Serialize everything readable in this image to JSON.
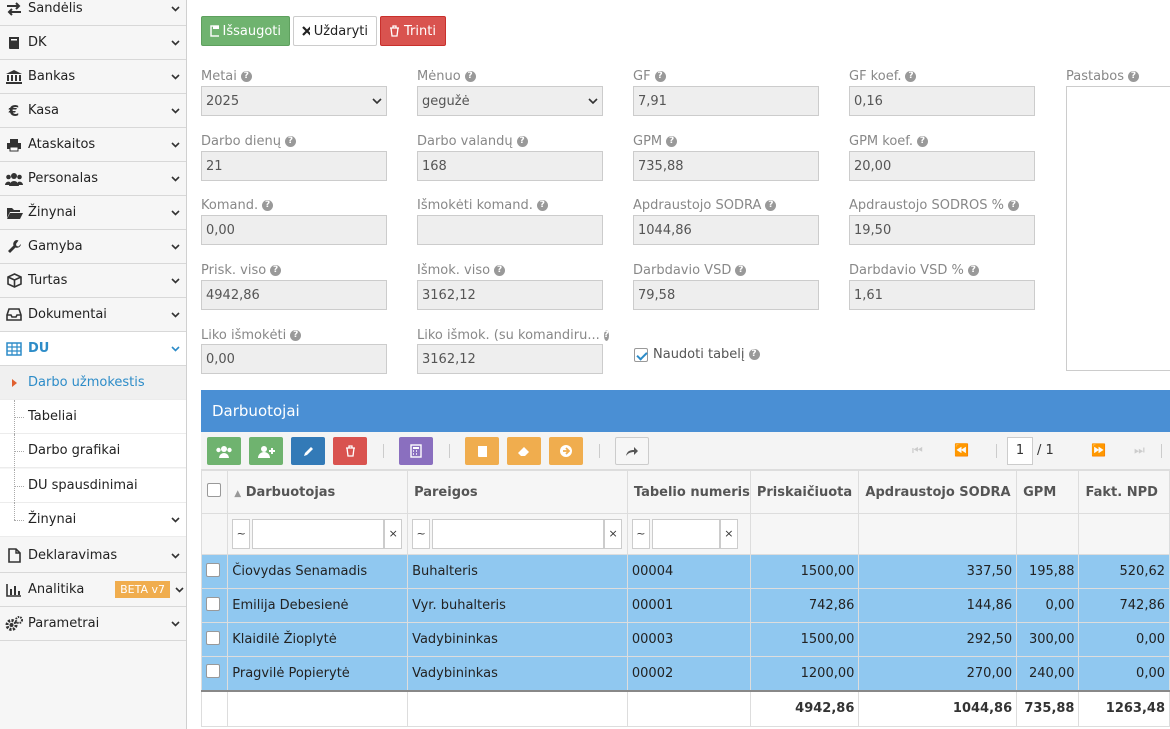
{
  "sidebar": {
    "items": [
      {
        "label": "Sandėlis",
        "icon": "exchange-icon"
      },
      {
        "label": "DK",
        "icon": "book-icon"
      },
      {
        "label": "Bankas",
        "icon": "bank-icon"
      },
      {
        "label": "Kasa",
        "icon": "euro-icon"
      },
      {
        "label": "Ataskaitos",
        "icon": "print-icon"
      },
      {
        "label": "Personalas",
        "icon": "users-icon"
      },
      {
        "label": "Žinynai",
        "icon": "folder-icon"
      },
      {
        "label": "Gamyba",
        "icon": "wrench-icon"
      },
      {
        "label": "Turtas",
        "icon": "cube-icon"
      },
      {
        "label": "Dokumentai",
        "icon": "inbox-icon"
      },
      {
        "label": "DU",
        "icon": "table-icon"
      }
    ],
    "du_sub": [
      "Darbo užmokestis",
      "Tabeliai",
      "Darbo grafikai",
      "DU spausdinimai",
      "Žinynai"
    ],
    "bottom_items": [
      {
        "label": "Deklaravimas",
        "icon": "file-icon"
      },
      {
        "label": "Analitika",
        "icon": "bar-chart-icon",
        "badge": "BETA v7"
      },
      {
        "label": "Parametrai",
        "icon": "cogs-icon"
      }
    ]
  },
  "toolbar": {
    "save": "Išsaugoti",
    "close": "Uždaryti",
    "delete": "Trinti"
  },
  "form": {
    "metai": {
      "label": "Metai",
      "value": "2025"
    },
    "menuo": {
      "label": "Mėnuo",
      "value": "gegužė"
    },
    "gf": {
      "label": "GF",
      "value": "7,91"
    },
    "gf_koef": {
      "label": "GF koef.",
      "value": "0,16"
    },
    "darbo_dienu": {
      "label": "Darbo dienų",
      "value": "21"
    },
    "darbo_valandu": {
      "label": "Darbo valandų",
      "value": "168"
    },
    "gpm": {
      "label": "GPM",
      "value": "735,88"
    },
    "gpm_koef": {
      "label": "GPM koef.",
      "value": "20,00"
    },
    "komand": {
      "label": "Komand.",
      "value": "0,00"
    },
    "ismoketi_komand": {
      "label": "Išmokėti komand.",
      "value": ""
    },
    "apdr_sodra": {
      "label": "Apdraustojo SODRA",
      "value": "1044,86"
    },
    "apdr_sodros_proc": {
      "label": "Apdraustojo SODROS %",
      "value": "19,50"
    },
    "prisk_viso": {
      "label": "Prisk. viso",
      "value": "4942,86"
    },
    "ismok_viso": {
      "label": "Išmok. viso",
      "value": "3162,12"
    },
    "darbd_vsd": {
      "label": "Darbdavio VSD",
      "value": "79,58"
    },
    "darbd_vsd_proc": {
      "label": "Darbdavio VSD %",
      "value": "1,61"
    },
    "liko_ismoketi": {
      "label": "Liko išmokėti",
      "value": "0,00"
    },
    "liko_ismok_komand": {
      "label": "Liko išmok. (su komandiru...",
      "value": "3162,12"
    },
    "naudoti_tabeli": {
      "label": "Naudoti tabelį",
      "checked": true
    },
    "pastabos": {
      "label": "Pastabos",
      "value": ""
    }
  },
  "grid": {
    "title": "Darbuotojai",
    "page": "1",
    "page_total": "/ 1",
    "columns": [
      "Darbuotojas",
      "Pareigos",
      "Tabelio numeris",
      "Priskaičiuota",
      "Apdraustojo SODRA",
      "GPM",
      "Fakt. NPD"
    ],
    "filter_op": "~",
    "filter_clear": "×",
    "rows": [
      [
        "Čiovydas Senamadis",
        "Buhalteris",
        "00004",
        "1500,00",
        "337,50",
        "195,88",
        "520,62"
      ],
      [
        "Emilija Debesienė",
        "Vyr. buhalteris",
        "00001",
        "742,86",
        "144,86",
        "0,00",
        "742,86"
      ],
      [
        "Klaidilė Žioplytė",
        "Vadybininkas",
        "00003",
        "1500,00",
        "292,50",
        "300,00",
        "0,00"
      ],
      [
        "Pragvilė Popierytė",
        "Vadybininkas",
        "00002",
        "1200,00",
        "270,00",
        "240,00",
        "0,00"
      ]
    ],
    "totals": [
      "",
      "",
      "",
      "4942,86",
      "1044,86",
      "735,88",
      "1263,48"
    ]
  },
  "colors": {
    "accent": "#4a8fd4",
    "row_selected": "#90c8f0",
    "save": "#6fb36f",
    "delete": "#d9534f"
  }
}
